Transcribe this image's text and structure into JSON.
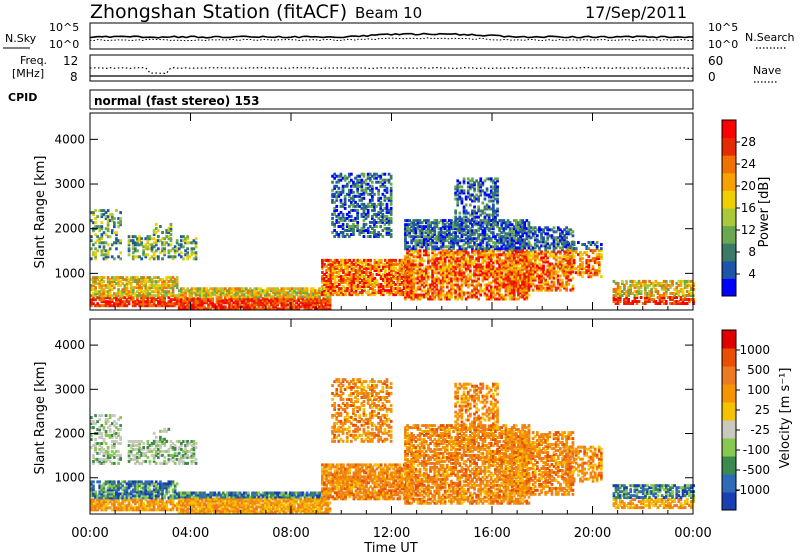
{
  "header": {
    "station_title": "Zhongshan Station (fitACF)",
    "beam": "Beam 10",
    "date": "17/Sep/2011"
  },
  "top_panels": {
    "nsky_label": "N.Sky",
    "nsearch_label": "N.Search",
    "noise_ticks_left": [
      "10^5",
      "10^0"
    ],
    "noise_ticks_right": [
      "10^5",
      "10^0"
    ],
    "freq_label_1": "Freq.",
    "freq_label_2": "[MHz]",
    "freq_ticks": [
      "12",
      "8"
    ],
    "nave_label": "Nave",
    "nave_ticks": [
      "60",
      "0"
    ],
    "cpid_label": "CPID",
    "cpid_text": "normal (fast stereo) 153"
  },
  "chart_data": [
    {
      "type": "heatmap",
      "name": "power",
      "ylabel": "Slant Range [km]",
      "yticks": [
        "4000",
        "3000",
        "2000",
        "1000"
      ],
      "ylim": [
        180,
        4590
      ],
      "xlim_hours": [
        0,
        24
      ],
      "colorbar_label": "Power [dB]",
      "colorbar_ticks": [
        "28",
        "24",
        "20",
        "16",
        "12",
        "8",
        "4"
      ],
      "colors": [
        "#0000ff",
        "#1c55aa",
        "#3a7a66",
        "#6aa84f",
        "#a9c83a",
        "#eed000",
        "#f7a200",
        "#f07000",
        "#e52c00",
        "#ff0000"
      ]
    },
    {
      "type": "heatmap",
      "name": "velocity",
      "ylabel": "Slant Range [km]",
      "yticks": [
        "4000",
        "3000",
        "2000",
        "1000"
      ],
      "ylim": [
        180,
        4590
      ],
      "xlim_hours": [
        0,
        24
      ],
      "xticks": [
        "00:00",
        "04:00",
        "08:00",
        "12:00",
        "16:00",
        "20:00",
        "00:00"
      ],
      "xlabel": "Time UT",
      "colorbar_label": "Velocity [m s⁻¹]",
      "colorbar_ticks": [
        "1000",
        "500",
        "100",
        "25",
        "-25",
        "-100",
        "-500",
        "-1000"
      ],
      "colors": [
        "#1a3fb0",
        "#2f6ab8",
        "#3d8a50",
        "#86c850",
        "#c8c8be",
        "#f5c200",
        "#f59600",
        "#ee7a20",
        "#e85000",
        "#e00000"
      ]
    }
  ]
}
